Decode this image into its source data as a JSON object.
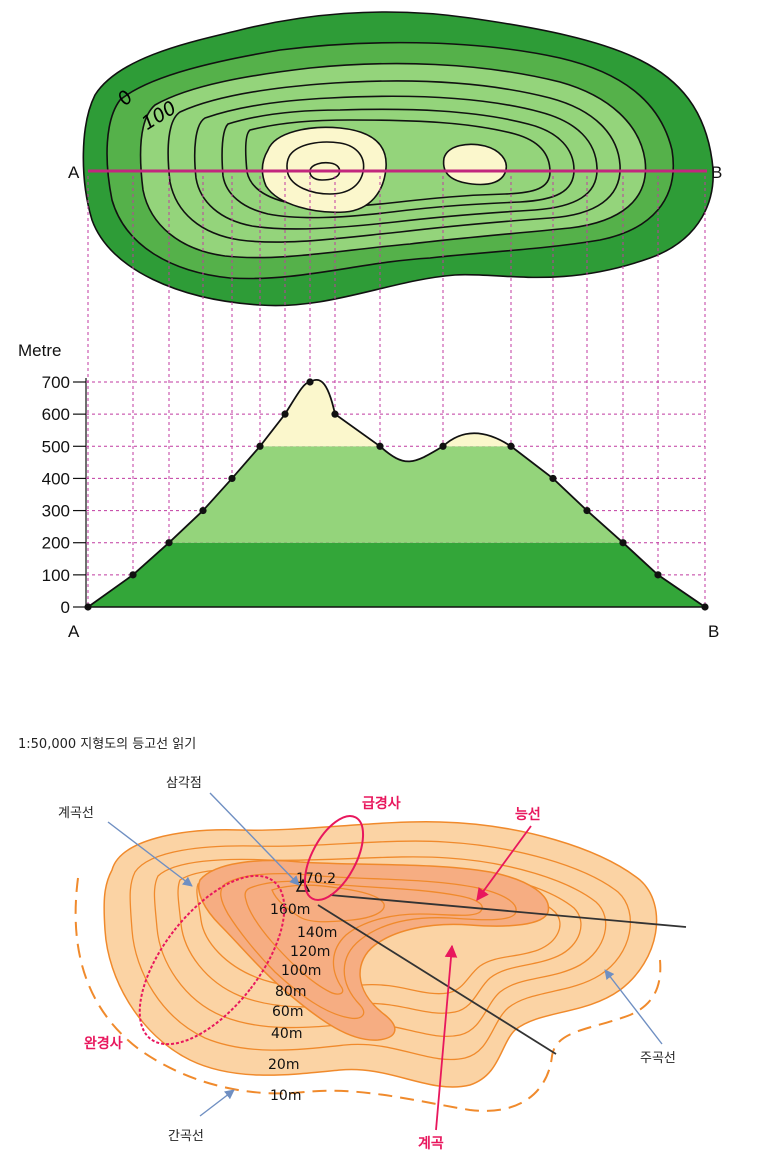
{
  "top_diagram": {
    "point_a": "A",
    "point_b": "B",
    "contour_labels": [
      "0",
      "100"
    ],
    "colors": {
      "low": "#33a639",
      "mid": "#94d47b",
      "high": "#fbf7cc",
      "section_line": "#c2277d",
      "guide": "#c03aa0"
    }
  },
  "profile_chart": {
    "ylabel": "Metre",
    "y_ticks": [
      "0",
      "100",
      "200",
      "300",
      "400",
      "500",
      "600",
      "700"
    ],
    "point_a": "A",
    "point_b": "B"
  },
  "chart_data": {
    "type": "area",
    "x_labels": [
      "A",
      "B"
    ],
    "ylabel": "Metre",
    "ylim": [
      0,
      700
    ],
    "y_ticks": [
      0,
      100,
      200,
      300,
      400,
      500,
      600,
      700
    ],
    "profile_points_m": [
      0,
      100,
      200,
      300,
      400,
      500,
      600,
      700,
      700,
      600,
      500,
      500,
      500,
      400,
      300,
      200,
      100,
      0
    ],
    "bands_m": [
      0,
      200,
      500,
      700
    ]
  },
  "bottom_diagram": {
    "title": "1:50,000 지형도의 등고선 읽기",
    "labels": {
      "triangulation_point": "삼각점",
      "valley_line": "계곡선",
      "steep_slope": "급경사",
      "ridge": "능선",
      "gentle_slope": "완경사",
      "intermediate_contour": "간곡선",
      "valley": "계곡",
      "index_contour": "주곡선"
    },
    "summit_elevation": "170.2",
    "elevations": [
      "160m",
      "140m",
      "120m",
      "100m",
      "80m",
      "60m",
      "40m",
      "20m",
      "10m"
    ],
    "colors": {
      "fill_outer": "#fbd3a4",
      "fill_inner": "#f6ad82",
      "contour": "#f08a2c",
      "accent": "#e8175d",
      "arrow": "#7a9ac7"
    }
  }
}
